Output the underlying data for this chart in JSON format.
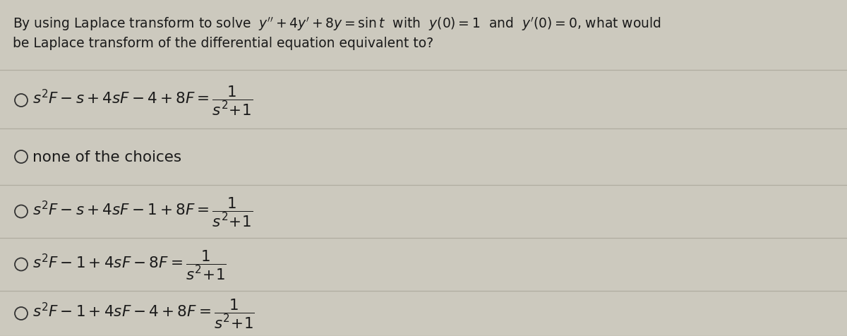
{
  "bg_color": "#ccc9be",
  "text_color": "#1a1a1a",
  "title_line1": "By using Laplace transform to solve  $y'' + 4y' + 8y = \\sin t$  with  $y(0) = 1$  and  $y'(0) = 0$, what would",
  "title_line2": "be Laplace transform of the differential equation equivalent to?",
  "choices": [
    "$s^2F - s + 4sF - 4 + 8F = \\dfrac{1}{s^2\\!+\\!1}$",
    "none of the choices",
    "$s^2F - s + 4sF - 1 + 8F = \\dfrac{1}{s^2\\!+\\!1}$",
    "$s^2F - 1 + 4sF - 8F = \\dfrac{1}{s^2\\!+\\!1}$",
    "$s^2F - 1 + 4sF - 4 + 8F = \\dfrac{1}{s^2\\!+\\!1}$"
  ],
  "divider_color": "#b0aca0",
  "circle_color": "#333333",
  "fontsize_title": 13.5,
  "fontsize_choices": 15.5,
  "fig_width": 12.0,
  "fig_height": 4.77
}
